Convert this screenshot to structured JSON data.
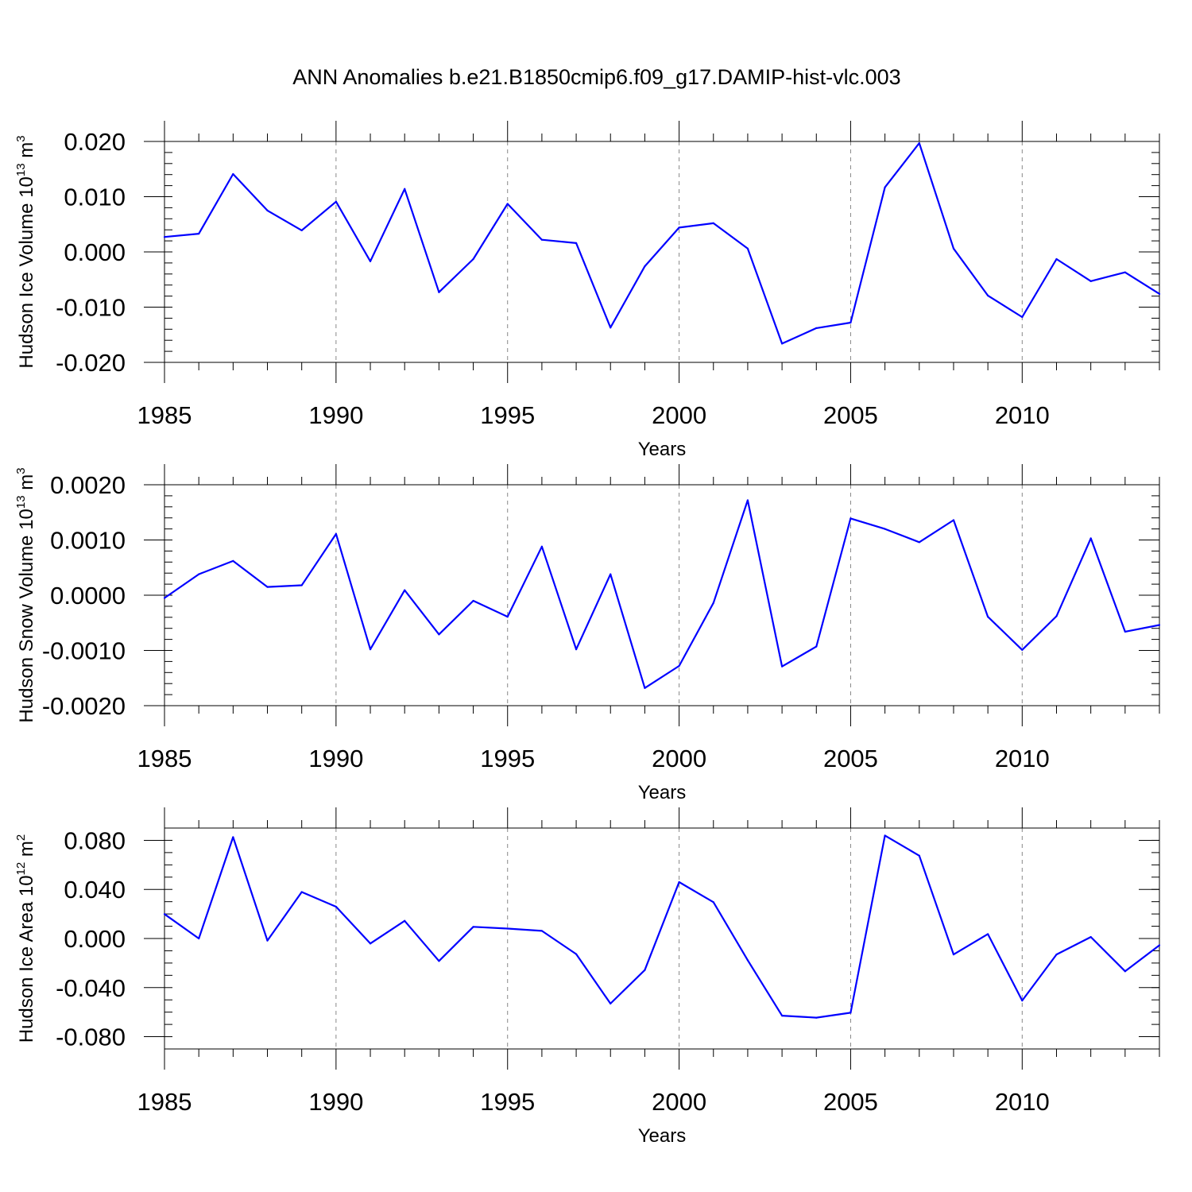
{
  "title": "ANN Anomalies b.e21.B1850cmip6.f09_g17.DAMIP-hist-vlc.003",
  "chart_data": [
    {
      "type": "line",
      "ylabel": "Hudson Ice Volume 10",
      "ylabel_exp": "13",
      "ylabel_unit": "m",
      "ylabel_unit_exp": "3",
      "xlabel": "Years",
      "xlim": [
        1985,
        2014
      ],
      "ylim": [
        -0.02,
        0.02
      ],
      "x_ticks": [
        "1985",
        "1990",
        "1995",
        "2000",
        "2005",
        "2010"
      ],
      "y_ticks": [
        "0.020",
        "0.010",
        "0.000",
        "-0.010",
        "-0.020"
      ],
      "y_tick_values": [
        0.02,
        0.01,
        0.0,
        -0.01,
        -0.02
      ],
      "y_minor_step": 0.002,
      "x": [
        1985,
        1986,
        1987,
        1988,
        1989,
        1990,
        1991,
        1992,
        1993,
        1994,
        1995,
        1996,
        1997,
        1998,
        1999,
        2000,
        2001,
        2002,
        2003,
        2004,
        2005,
        2006,
        2007,
        2008,
        2009,
        2010,
        2011,
        2012,
        2013,
        2014
      ],
      "values": [
        0.0027,
        0.0033,
        0.0141,
        0.0075,
        0.0039,
        0.0091,
        -0.0017,
        0.0114,
        -0.0073,
        -0.0013,
        0.0087,
        0.0022,
        0.0016,
        -0.0137,
        -0.0026,
        0.0044,
        0.0052,
        0.0006,
        -0.0166,
        -0.0138,
        -0.0128,
        0.0117,
        0.0197,
        0.0006,
        -0.0079,
        -0.0118,
        -0.0013,
        -0.0053,
        -0.0037,
        -0.0076
      ]
    },
    {
      "type": "line",
      "ylabel": "Hudson Snow Volume 10",
      "ylabel_exp": "13",
      "ylabel_unit": "m",
      "ylabel_unit_exp": "3",
      "xlabel": "Years",
      "xlim": [
        1985,
        2014
      ],
      "ylim": [
        -0.002,
        0.002
      ],
      "x_ticks": [
        "1985",
        "1990",
        "1995",
        "2000",
        "2005",
        "2010"
      ],
      "y_ticks": [
        "0.0020",
        "0.0010",
        "0.0000",
        "-0.0010",
        "-0.0020"
      ],
      "y_tick_values": [
        0.002,
        0.001,
        0.0,
        -0.001,
        -0.002
      ],
      "y_minor_step": 0.0002,
      "x": [
        1985,
        1986,
        1987,
        1988,
        1989,
        1990,
        1991,
        1992,
        1993,
        1994,
        1995,
        1996,
        1997,
        1998,
        1999,
        2000,
        2001,
        2002,
        2003,
        2004,
        2005,
        2006,
        2007,
        2008,
        2009,
        2010,
        2011,
        2012,
        2013,
        2014
      ],
      "values": [
        -5e-05,
        0.00038,
        0.00062,
        0.00015,
        0.00018,
        0.00111,
        -0.00098,
        9e-05,
        -0.00071,
        -0.0001,
        -0.00039,
        0.00088,
        -0.00098,
        0.00038,
        -0.00168,
        -0.00128,
        -0.00014,
        0.00172,
        -0.00129,
        -0.00093,
        0.00139,
        0.0012,
        0.00096,
        0.00136,
        -0.00039,
        -0.00099,
        -0.00038,
        0.00103,
        -0.00066,
        -0.00054
      ]
    },
    {
      "type": "line",
      "ylabel": "Hudson Ice Area 10",
      "ylabel_exp": "12",
      "ylabel_unit": "m",
      "ylabel_unit_exp": "2",
      "xlabel": "Years",
      "xlim": [
        1985,
        2014
      ],
      "ylim": [
        -0.09,
        0.09
      ],
      "x_ticks": [
        "1985",
        "1990",
        "1995",
        "2000",
        "2005",
        "2010"
      ],
      "y_ticks": [
        "0.080",
        "0.040",
        "0.000",
        "-0.040",
        "-0.080"
      ],
      "y_tick_values": [
        0.08,
        0.04,
        0.0,
        -0.04,
        -0.08
      ],
      "y_minor_step": 0.01,
      "x": [
        1985,
        1986,
        1987,
        1988,
        1989,
        1990,
        1991,
        1992,
        1993,
        1994,
        1995,
        1996,
        1997,
        1998,
        1999,
        2000,
        2001,
        2002,
        2003,
        2004,
        2005,
        2006,
        2007,
        2008,
        2009,
        2010,
        2011,
        2012,
        2013,
        2014
      ],
      "values": [
        0.0199,
        0.0,
        0.0826,
        -0.0017,
        0.0379,
        0.0259,
        -0.0041,
        0.0144,
        -0.0183,
        0.0095,
        0.0081,
        0.0062,
        -0.0127,
        -0.053,
        -0.0257,
        0.046,
        0.0296,
        -0.0177,
        -0.0629,
        -0.0645,
        -0.0605,
        0.0839,
        0.0675,
        -0.013,
        0.0036,
        -0.0506,
        -0.013,
        0.0012,
        -0.0267,
        -0.0055
      ]
    }
  ]
}
